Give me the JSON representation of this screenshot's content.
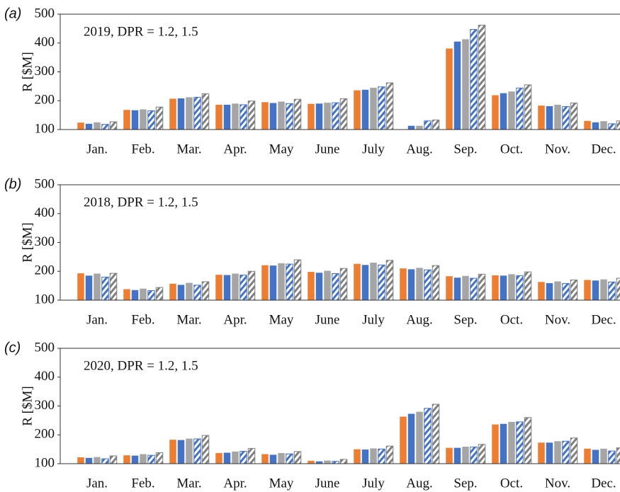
{
  "chart_data": [
    {
      "type": "bar",
      "panel_label": "(a)",
      "annotation": "2019, DPR = 1.2, 1.5",
      "ylabel": "R [$M]",
      "categories": [
        "Jan.",
        "Feb.",
        "Mar.",
        "Apr.",
        "May",
        "June",
        "July",
        "Aug.",
        "Sep.",
        "Oct.",
        "Nov.",
        "Dec."
      ],
      "ylim": [
        100,
        500
      ],
      "yticks": [
        100,
        200,
        300,
        400,
        500
      ],
      "series": [
        {
          "color": "#ed7d31",
          "hatch": false,
          "values": [
            124,
            168,
            207,
            186,
            195,
            189,
            236,
            100,
            381,
            219,
            183,
            130
          ]
        },
        {
          "color": "#4472c4",
          "hatch": false,
          "values": [
            120,
            167,
            208,
            186,
            192,
            190,
            238,
            113,
            405,
            226,
            181,
            125
          ]
        },
        {
          "color": "#a5a5a5",
          "hatch": false,
          "values": [
            125,
            170,
            212,
            190,
            197,
            193,
            245,
            113,
            413,
            232,
            186,
            129
          ]
        },
        {
          "color": "#4472c4",
          "hatch": true,
          "values": [
            118,
            165,
            212,
            186,
            190,
            193,
            248,
            130,
            447,
            244,
            180,
            120
          ]
        },
        {
          "color": "#7f7f7f",
          "hatch": true,
          "values": [
            127,
            178,
            224,
            199,
            205,
            207,
            262,
            133,
            462,
            255,
            192,
            130
          ]
        }
      ]
    },
    {
      "type": "bar",
      "panel_label": "(b)",
      "annotation": "2018, DPR = 1.2, 1.5",
      "ylabel": "R [$M]",
      "categories": [
        "Jan.",
        "Feb.",
        "Mar.",
        "Apr.",
        "May",
        "June",
        "July",
        "Aug.",
        "Sep.",
        "Oct.",
        "Nov.",
        "Dec."
      ],
      "ylim": [
        100,
        500
      ],
      "yticks": [
        100,
        200,
        300,
        400,
        500
      ],
      "series": [
        {
          "color": "#ed7d31",
          "hatch": false,
          "values": [
            193,
            138,
            157,
            188,
            221,
            198,
            226,
            210,
            183,
            186,
            163,
            170
          ]
        },
        {
          "color": "#4472c4",
          "hatch": false,
          "values": [
            185,
            135,
            153,
            187,
            220,
            195,
            222,
            207,
            178,
            185,
            159,
            168
          ]
        },
        {
          "color": "#a5a5a5",
          "hatch": false,
          "values": [
            192,
            140,
            160,
            192,
            228,
            202,
            230,
            212,
            184,
            190,
            165,
            172
          ]
        },
        {
          "color": "#4472c4",
          "hatch": true,
          "values": [
            180,
            133,
            152,
            187,
            225,
            192,
            222,
            205,
            176,
            185,
            158,
            163
          ]
        },
        {
          "color": "#7f7f7f",
          "hatch": true,
          "values": [
            193,
            144,
            164,
            200,
            240,
            210,
            238,
            220,
            190,
            198,
            170,
            176
          ]
        }
      ]
    },
    {
      "type": "bar",
      "panel_label": "(c)",
      "annotation": "2020, DPR = 1.2, 1.5",
      "ylabel": "R [$M]",
      "categories": [
        "Jan.",
        "Feb.",
        "Mar.",
        "Apr.",
        "May",
        "June",
        "July",
        "Aug.",
        "Sep.",
        "Oct.",
        "Nov.",
        "Dec."
      ],
      "ylim": [
        100,
        500
      ],
      "yticks": [
        100,
        200,
        300,
        400,
        500
      ],
      "series": [
        {
          "color": "#ed7d31",
          "hatch": false,
          "values": [
            122,
            129,
            183,
            137,
            133,
            110,
            150,
            263,
            155,
            236,
            173,
            152
          ]
        },
        {
          "color": "#4472c4",
          "hatch": false,
          "values": [
            120,
            128,
            182,
            138,
            131,
            108,
            149,
            273,
            155,
            238,
            173,
            148
          ]
        },
        {
          "color": "#a5a5a5",
          "hatch": false,
          "values": [
            123,
            133,
            187,
            142,
            137,
            111,
            153,
            280,
            159,
            245,
            178,
            152
          ]
        },
        {
          "color": "#4472c4",
          "hatch": true,
          "values": [
            117,
            129,
            186,
            143,
            134,
            108,
            151,
            292,
            158,
            245,
            178,
            144
          ]
        },
        {
          "color": "#7f7f7f",
          "hatch": true,
          "values": [
            127,
            138,
            198,
            153,
            142,
            115,
            161,
            306,
            167,
            260,
            189,
            155
          ]
        }
      ]
    }
  ]
}
